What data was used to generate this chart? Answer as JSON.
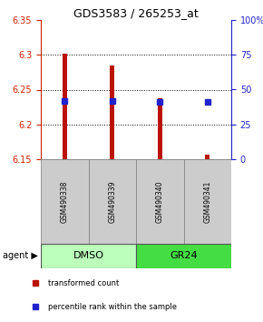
{
  "title": "GDS3583 / 265253_at",
  "categories": [
    "GSM490338",
    "GSM490339",
    "GSM490340",
    "GSM490341"
  ],
  "bar_bottoms": [
    6.15,
    6.15,
    6.15,
    6.15
  ],
  "bar_tops": [
    6.302,
    6.285,
    6.237,
    6.156
  ],
  "blue_y": [
    6.234,
    6.234,
    6.232,
    6.232
  ],
  "ylim_left": [
    6.15,
    6.35
  ],
  "ylim_right": [
    0,
    100
  ],
  "yticks_left": [
    6.15,
    6.2,
    6.25,
    6.3,
    6.35
  ],
  "yticks_right": [
    0,
    25,
    50,
    75,
    100
  ],
  "ytick_labels_right": [
    "0",
    "25",
    "50",
    "75",
    "100%"
  ],
  "bar_color": "#bb1100",
  "blue_color": "#2222cc",
  "groups": [
    {
      "label": "DMSO",
      "indices": [
        0,
        1
      ],
      "color": "#bbffbb"
    },
    {
      "label": "GR24",
      "indices": [
        2,
        3
      ],
      "color": "#44dd44"
    }
  ],
  "legend_items": [
    {
      "color": "#bb1100",
      "label": "transformed count"
    },
    {
      "color": "#2222cc",
      "label": "percentile rank within the sample"
    }
  ],
  "sample_box_color": "#cccccc",
  "left_axis_color": "#cc2200",
  "right_axis_color": "#2222cc"
}
